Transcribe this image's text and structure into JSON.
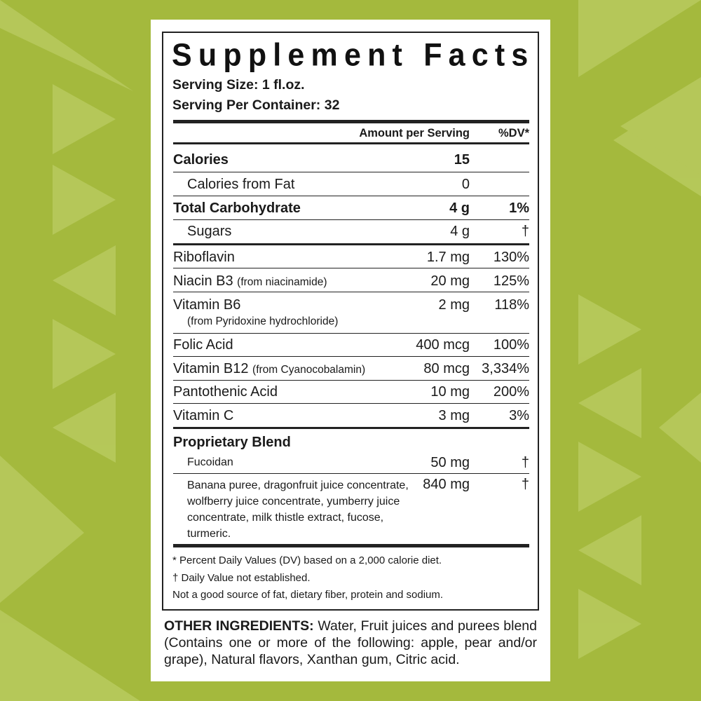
{
  "colors": {
    "background": "#a4b93d",
    "pattern": "#b8ca5e",
    "panel": "#ffffff",
    "text": "#1a1a1a"
  },
  "label": {
    "title": "Supplement Facts",
    "serving_size": "Serving Size: 1 fl.oz.",
    "servings_per_container": "Serving Per Container: 32",
    "col_amount": "Amount per Serving",
    "col_dv": "%DV*",
    "rows": [
      {
        "name": "Calories",
        "amount": "15",
        "dv": ""
      },
      {
        "name": "Calories from Fat",
        "amount": "0",
        "dv": ""
      },
      {
        "name": "Total Carbohydrate",
        "amount": "4 g",
        "dv": "1%"
      },
      {
        "name": "Sugars",
        "amount": "4 g",
        "dv": "†"
      },
      {
        "name": "Riboflavin",
        "amount": "1.7 mg",
        "dv": "130%"
      },
      {
        "name": "Niacin B3",
        "note": "(from niacinamide)",
        "amount": "20 mg",
        "dv": "125%"
      },
      {
        "name": "Vitamin B6",
        "note": "(from Pyridoxine hydrochloride)",
        "amount": "2 mg",
        "dv": "118%"
      },
      {
        "name": "Folic Acid",
        "amount": "400 mcg",
        "dv": "100%"
      },
      {
        "name": "Vitamin B12",
        "note": "(from Cyanocobalamin)",
        "amount": "80 mcg",
        "dv": "3,334%"
      },
      {
        "name": "Pantothenic Acid",
        "amount": "10 mg",
        "dv": "200%"
      },
      {
        "name": "Vitamin C",
        "amount": "3 mg",
        "dv": "3%"
      }
    ],
    "blend": {
      "title": "Proprietary Blend",
      "items": [
        {
          "name": "Fucoidan",
          "amount": "50 mg",
          "dv": "†"
        },
        {
          "name": "Banana puree, dragonfruit juice concentrate, wolfberry juice concentrate, yumberry juice concentrate, milk thistle extract, fucose, turmeric.",
          "amount": "840 mg",
          "dv": "†"
        }
      ]
    },
    "footnotes": [
      "* Percent Daily Values (DV) based on a 2,000 calorie diet.",
      "† Daily Value not established.",
      "Not a good source of fat, dietary fiber, protein and sodium."
    ]
  },
  "other_ingredients": {
    "heading": "OTHER INGREDIENTS:",
    "text": " Water, Fruit juices and purees blend (Contains one or more of the following: apple, pear and/or grape), Natural flavors, Xanthan gum, Citric acid."
  }
}
